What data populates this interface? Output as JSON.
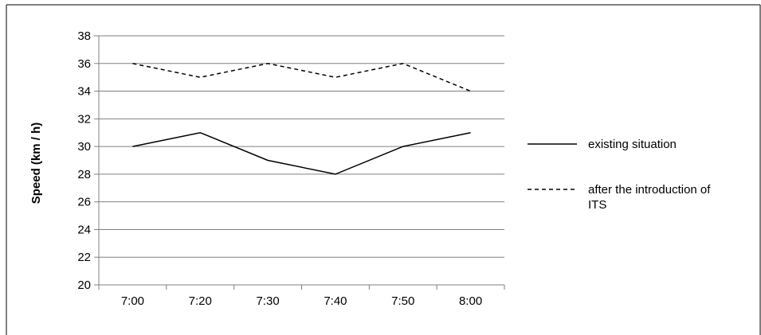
{
  "chart_data": {
    "type": "line",
    "title": "",
    "xlabel": "",
    "ylabel": "Speed (km / h)",
    "categories": [
      "7:00",
      "7:20",
      "7:30",
      "7:40",
      "7:50",
      "8:00"
    ],
    "ylim": [
      20,
      38
    ],
    "ytick_step": 2,
    "yticks": [
      "20",
      "22",
      "24",
      "26",
      "28",
      "30",
      "32",
      "34",
      "36",
      "38"
    ],
    "grid": "horizontal",
    "legend_position": "right",
    "series": [
      {
        "name": "existing situation",
        "style": "solid",
        "color": "#000000",
        "values": [
          30,
          31,
          29,
          28,
          30,
          31
        ]
      },
      {
        "name": "after the introduction of ITS",
        "style": "dashed",
        "color": "#000000",
        "values": [
          36,
          35,
          36,
          35,
          36,
          34
        ]
      }
    ],
    "colors": {
      "grid": "#808080",
      "axis": "#808080",
      "frame": "#000000"
    }
  }
}
